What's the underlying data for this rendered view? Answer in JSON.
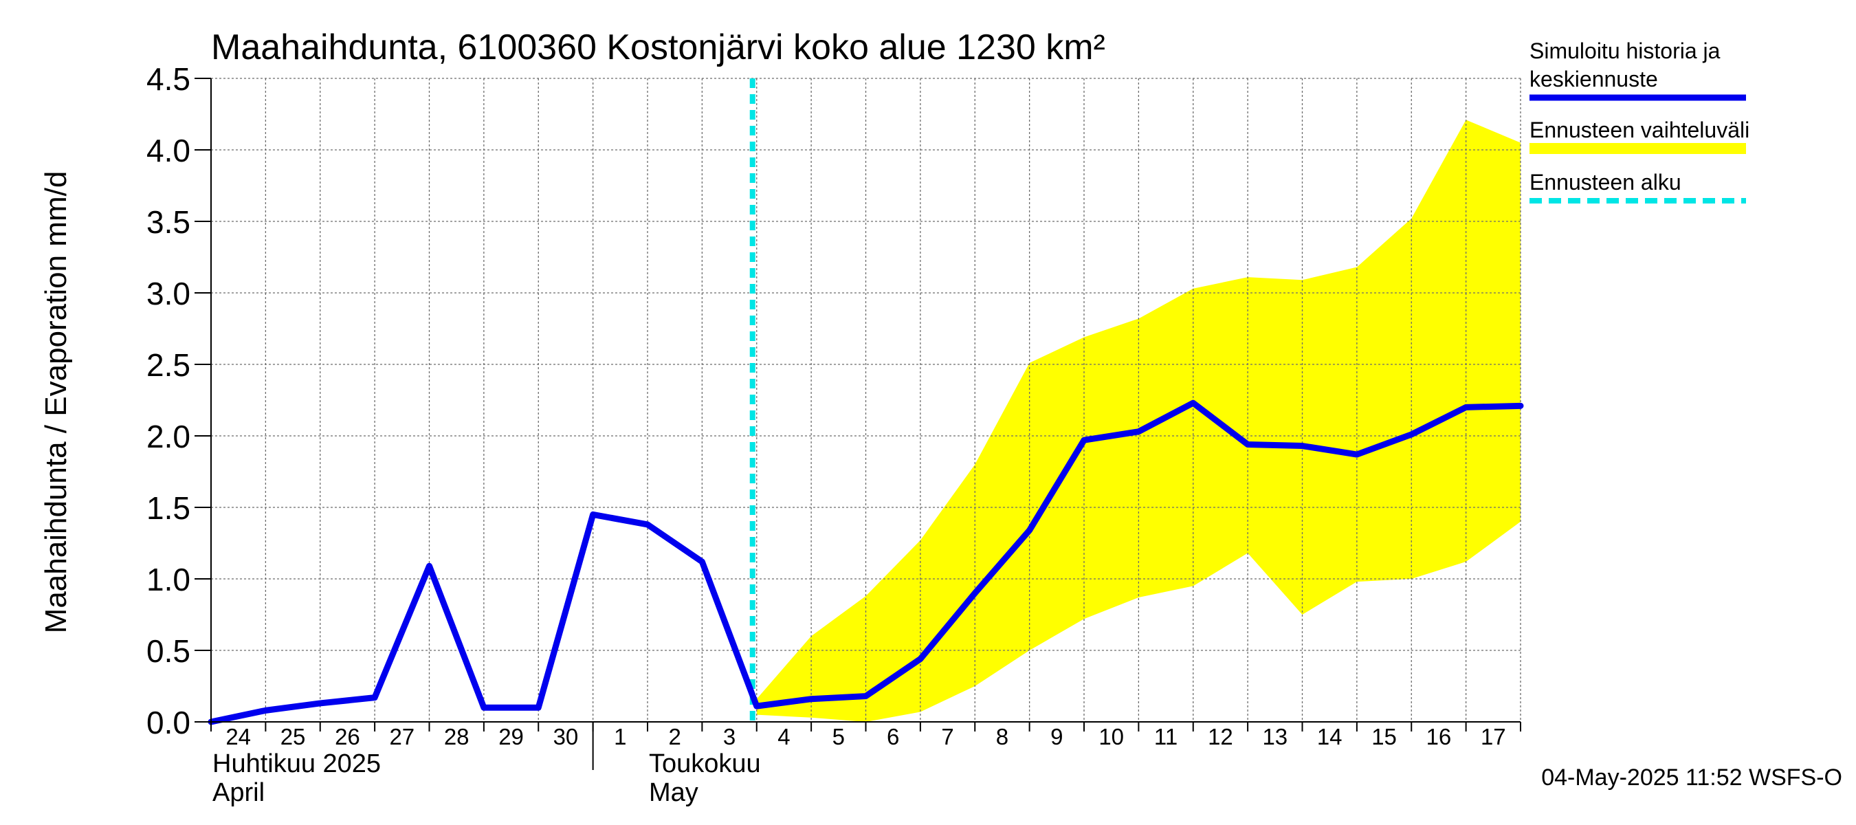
{
  "chart_data": {
    "type": "line",
    "title": "Maahaihdunta, 6100360 Kostonjärvi koko alue 1230 km²",
    "ylabel": "Maahaihdunta / Evaporation   mm/d",
    "ylim": [
      0,
      4.5
    ],
    "yticks": [
      "0.0",
      "0.5",
      "1.0",
      "1.5",
      "2.0",
      "2.5",
      "3.0",
      "3.5",
      "4.0",
      "4.5"
    ],
    "x_day_labels": [
      "24",
      "25",
      "26",
      "27",
      "28",
      "29",
      "30",
      "1",
      "2",
      "3",
      "4",
      "5",
      "6",
      "7",
      "8",
      "9",
      "10",
      "11",
      "12",
      "13",
      "14",
      "15",
      "16",
      "17"
    ],
    "month_labels": [
      {
        "line1": "Huhtikuu  2025",
        "line2": "April"
      },
      {
        "line1": "Toukokuu",
        "line2": "May"
      }
    ],
    "grid": true,
    "forecast_start": "4",
    "series": [
      {
        "name": "Simuloitu historia ja keskiennuste",
        "color": "#0000ee",
        "values": [
          0.0,
          0.08,
          0.13,
          0.17,
          1.09,
          0.1,
          0.1,
          1.45,
          1.38,
          1.12,
          0.11,
          0.16,
          0.18,
          0.44,
          0.9,
          1.34,
          1.97,
          2.03,
          2.23,
          1.94,
          1.93,
          1.87,
          2.01,
          2.2,
          2.21
        ]
      }
    ],
    "band": {
      "name": "Ennusteen vaihteluväli",
      "color": "#ffff00",
      "upper": [
        0.16,
        0.6,
        0.88,
        1.27,
        1.8,
        2.51,
        2.69,
        2.82,
        3.03,
        3.11,
        3.09,
        3.18,
        3.52,
        4.21,
        4.05
      ],
      "lower": [
        0.05,
        0.03,
        0.0,
        0.07,
        0.25,
        0.5,
        0.72,
        0.87,
        0.95,
        1.18,
        0.75,
        0.98,
        1.0,
        1.12,
        1.4
      ]
    },
    "forecast_line": {
      "name": "Ennusteen alku",
      "color": "#00e5e5"
    }
  },
  "legend": {
    "entries": [
      {
        "line1": "Simuloitu historia ja",
        "line2": "keskiennuste",
        "color": "#0000ee",
        "style": "solid"
      },
      {
        "line1": "Ennusteen vaihteluväli",
        "line2": "",
        "color": "#ffff00",
        "style": "solid"
      },
      {
        "line1": "Ennusteen alku",
        "line2": "",
        "color": "#00e5e5",
        "style": "dashed"
      }
    ]
  },
  "footer": "04-May-2025 11:52 WSFS-O"
}
